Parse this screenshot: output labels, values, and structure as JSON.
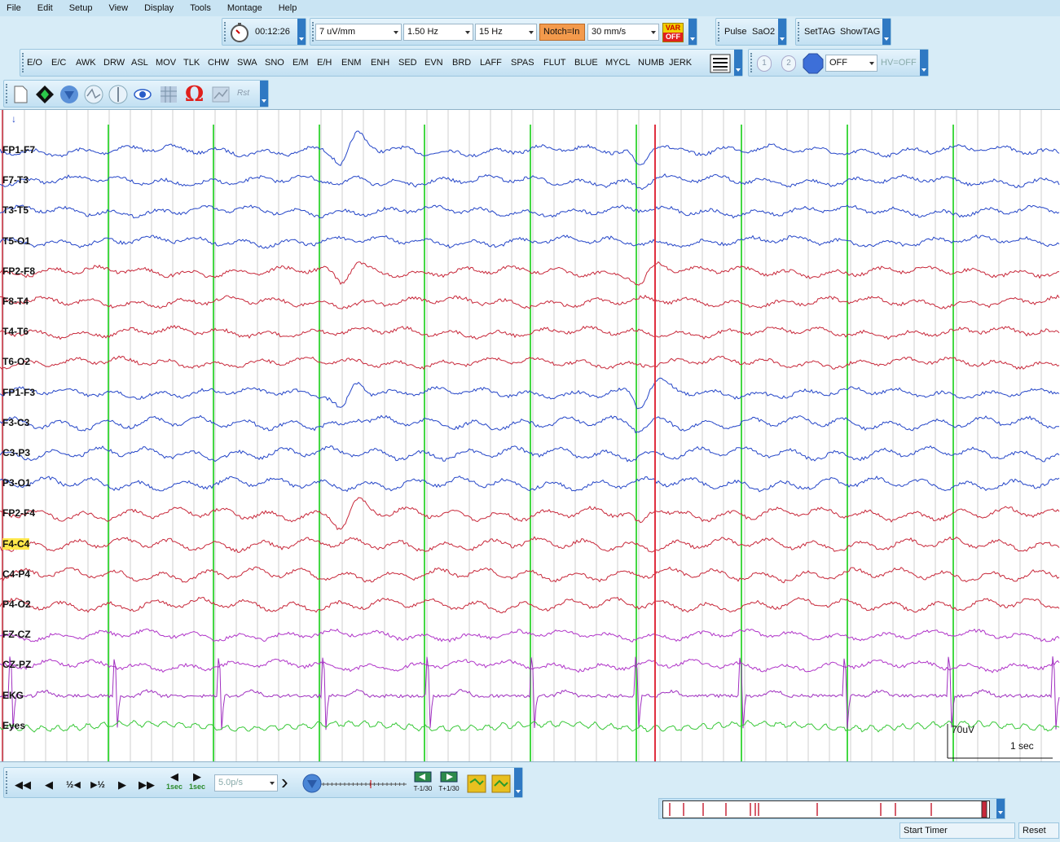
{
  "menu": [
    "File",
    "Edit",
    "Setup",
    "View",
    "Display",
    "Tools",
    "Montage",
    "Help"
  ],
  "toolbar1": {
    "timer": "00:12:26",
    "sensitivity": "7 uV/mm",
    "low_filter": "1.50 Hz",
    "high_filter": "15 Hz",
    "notch": "Notch=In",
    "paper_speed": "30 mm/s",
    "var_label_top": "VAR",
    "var_label_bottom": "OFF"
  },
  "toolbar_pulse": {
    "pulse": "Pulse",
    "sao2": "SaO2"
  },
  "toolbar_tag": {
    "settag": "SetTAG",
    "showtag": "ShowTAG"
  },
  "events": [
    "E/O",
    "E/C",
    "AWK",
    "DRW",
    "ASL",
    "MOV",
    "TLK",
    "CHW",
    "SWA",
    "SNO",
    "E/M",
    "E/H",
    "ENM",
    "ENH",
    "SED",
    "EVN",
    "BRD",
    "LAFF",
    "SPAS",
    "FLUT",
    "BLUE",
    "MYCL",
    "NUMB",
    "JERK"
  ],
  "photic": {
    "state": "OFF",
    "hv": "HV=OFF",
    "btn1": "1",
    "btn2": "2"
  },
  "toolbar3": {
    "omega": "Ω",
    "rst": "Rst"
  },
  "marker_arrow": "↓",
  "channels": [
    {
      "name": "FP1-F7",
      "color": "#2546c8"
    },
    {
      "name": "F7-T3",
      "color": "#2546c8"
    },
    {
      "name": "T3-T5",
      "color": "#2546c8"
    },
    {
      "name": "T5-O1",
      "color": "#2546c8"
    },
    {
      "name": "FP2-F8",
      "color": "#c8283a"
    },
    {
      "name": "F8-T4",
      "color": "#c8283a"
    },
    {
      "name": "T4-T6",
      "color": "#c8283a"
    },
    {
      "name": "T6-O2",
      "color": "#c8283a"
    },
    {
      "name": "FP1-F3",
      "color": "#2546c8"
    },
    {
      "name": "F3-C3",
      "color": "#2546c8"
    },
    {
      "name": "C3-P3",
      "color": "#2546c8"
    },
    {
      "name": "P3-O1",
      "color": "#2546c8"
    },
    {
      "name": "FP2-F4",
      "color": "#c8283a"
    },
    {
      "name": "F4-C4",
      "color": "#c8283a"
    },
    {
      "name": "C4-P4",
      "color": "#c8283a"
    },
    {
      "name": "P4-O2",
      "color": "#c8283a"
    },
    {
      "name": "FZ-CZ",
      "color": "#b034c8"
    },
    {
      "name": "CZ-PZ",
      "color": "#b034c8"
    },
    {
      "name": "EKG",
      "color": "#a030c0"
    },
    {
      "name": "Eyes",
      "color": "#38c838"
    }
  ],
  "selected_channel": "F4-C4",
  "scale": {
    "amplitude": "70uV",
    "time": "1 sec"
  },
  "playback": {
    "speed": "5.0p/s",
    "nav": [
      "◀◀",
      "◀",
      "½◀",
      "▶½",
      "▶",
      "▶▶"
    ],
    "sec_back": "1sec",
    "sec_fwd": "1sec",
    "t_back": "T-1/30",
    "t_fwd": "T+1/30"
  },
  "status": {
    "start_timer": "Start Timer",
    "reset": "Reset"
  }
}
